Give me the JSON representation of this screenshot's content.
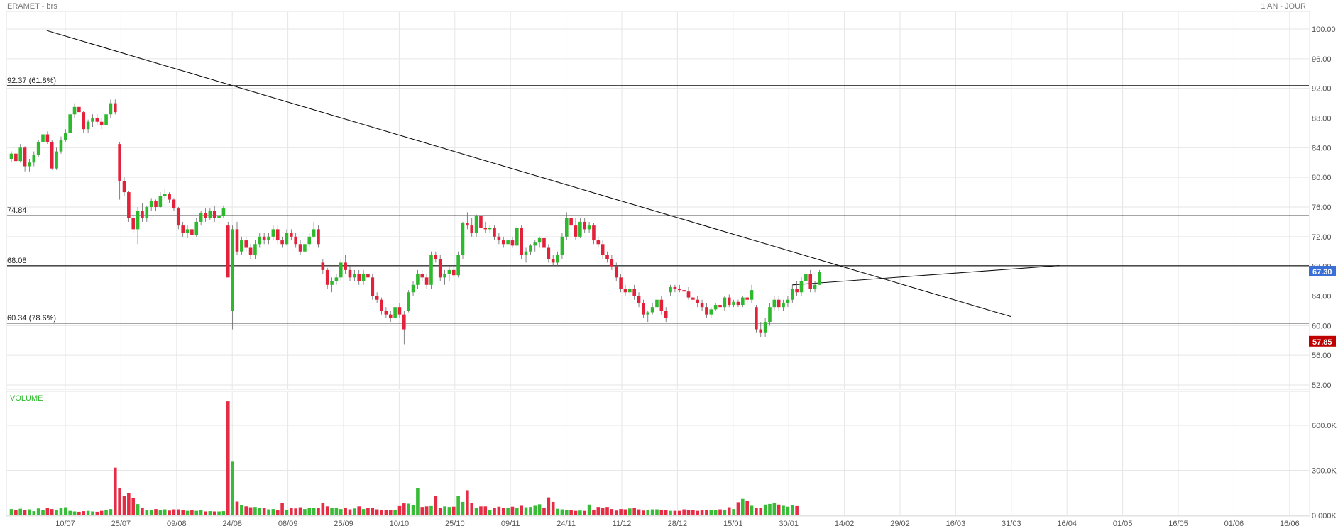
{
  "header": {
    "title": "ERAMET - brs",
    "period": "1 AN - JOUR"
  },
  "colors": {
    "up": "#2db82d",
    "down": "#e3213b",
    "grid": "#e6e6e6",
    "line": "#111111",
    "last_badge": "#3a6fd8",
    "low_badge": "#c00000",
    "volume_label": "#2db82d"
  },
  "chart_data": [
    {
      "type": "candlestick",
      "title": "ERAMET - brs",
      "ylim": [
        50,
        102
      ],
      "y_ticks": [
        "100.00",
        "96.00",
        "92.00",
        "88.00",
        "84.00",
        "80.00",
        "76.00",
        "72.00",
        "68.00",
        "64.00",
        "60.00",
        "56.00",
        "52.00"
      ],
      "x_ticks": [
        "10/07",
        "25/07",
        "09/08",
        "24/08",
        "08/09",
        "25/09",
        "10/10",
        "25/10",
        "09/11",
        "24/11",
        "11/12",
        "28/12",
        "15/01",
        "30/01",
        "14/02",
        "29/02",
        "16/03",
        "31/03",
        "16/04",
        "01/05",
        "16/05",
        "01/06",
        "16/06"
      ],
      "candles_ohlc": [
        [
          82.5,
          83.5,
          82.0,
          83.2
        ],
        [
          83.2,
          83.8,
          82.0,
          82.2
        ],
        [
          82.2,
          84.5,
          82.0,
          84.0
        ],
        [
          84.0,
          84.2,
          80.8,
          81.5
        ],
        [
          81.5,
          82.5,
          80.8,
          82.0
        ],
        [
          82.0,
          83.5,
          81.5,
          83.0
        ],
        [
          83.0,
          85.0,
          82.8,
          84.8
        ],
        [
          84.8,
          86.0,
          84.5,
          85.8
        ],
        [
          85.8,
          86.2,
          84.5,
          84.8
        ],
        [
          84.8,
          85.0,
          81.0,
          81.2
        ],
        [
          81.2,
          84.0,
          81.0,
          83.5
        ],
        [
          83.5,
          85.5,
          83.2,
          85.0
        ],
        [
          85.0,
          86.5,
          84.8,
          86.0
        ],
        [
          86.0,
          89.0,
          86.0,
          88.5
        ],
        [
          88.5,
          90.0,
          88.0,
          89.5
        ],
        [
          89.5,
          90.0,
          88.5,
          88.8
        ],
        [
          88.8,
          89.0,
          86.0,
          86.5
        ],
        [
          86.5,
          87.8,
          86.0,
          87.5
        ],
        [
          87.5,
          88.5,
          86.8,
          88.0
        ],
        [
          88.0,
          88.5,
          87.0,
          87.5
        ],
        [
          87.5,
          88.0,
          86.5,
          87.0
        ],
        [
          87.0,
          89.0,
          86.5,
          88.5
        ],
        [
          88.5,
          90.5,
          88.0,
          90.0
        ],
        [
          90.0,
          90.5,
          88.5,
          88.8
        ],
        [
          84.5,
          84.8,
          77.0,
          79.5
        ],
        [
          79.5,
          80.0,
          77.5,
          78.0
        ],
        [
          78.0,
          78.2,
          74.0,
          74.5
        ],
        [
          74.5,
          75.0,
          72.5,
          73.0
        ],
        [
          73.0,
          76.0,
          71.0,
          75.5
        ],
        [
          75.5,
          76.5,
          74.0,
          74.5
        ],
        [
          74.5,
          76.2,
          74.0,
          76.0
        ],
        [
          76.0,
          77.2,
          75.5,
          76.8
        ],
        [
          76.8,
          77.0,
          75.5,
          76.0
        ],
        [
          76.0,
          78.0,
          75.8,
          77.5
        ],
        [
          77.5,
          78.5,
          77.0,
          77.8
        ],
        [
          77.8,
          78.0,
          76.5,
          77.0
        ],
        [
          77.0,
          77.2,
          75.5,
          75.8
        ],
        [
          75.8,
          76.0,
          73.0,
          73.5
        ],
        [
          73.5,
          74.0,
          72.0,
          72.5
        ],
        [
          72.5,
          73.5,
          71.8,
          73.0
        ],
        [
          73.0,
          74.5,
          72.0,
          72.2
        ],
        [
          72.2,
          74.5,
          72.0,
          74.0
        ],
        [
          74.0,
          75.5,
          73.5,
          75.2
        ],
        [
          75.2,
          75.8,
          74.0,
          74.5
        ],
        [
          74.5,
          75.8,
          74.2,
          75.5
        ],
        [
          75.5,
          76.2,
          74.0,
          74.5
        ],
        [
          74.5,
          75.0,
          74.0,
          74.8
        ],
        [
          74.8,
          76.2,
          74.5,
          75.8
        ],
        [
          73.5,
          74.0,
          69.0,
          66.5
        ],
        [
          62.0,
          73.5,
          59.5,
          73.0
        ],
        [
          73.0,
          74.0,
          69.5,
          70.0
        ],
        [
          70.0,
          72.0,
          69.5,
          71.5
        ],
        [
          71.5,
          72.0,
          70.0,
          70.5
        ],
        [
          70.5,
          71.0,
          69.0,
          69.5
        ],
        [
          69.5,
          71.5,
          69.0,
          71.0
        ],
        [
          71.0,
          72.5,
          70.5,
          72.0
        ],
        [
          72.0,
          72.5,
          71.0,
          71.5
        ],
        [
          71.5,
          72.5,
          71.0,
          72.0
        ],
        [
          72.0,
          73.5,
          71.5,
          73.0
        ],
        [
          73.0,
          73.5,
          71.0,
          71.5
        ],
        [
          71.5,
          72.0,
          70.5,
          71.0
        ],
        [
          71.0,
          73.0,
          70.8,
          72.5
        ],
        [
          72.5,
          73.0,
          71.5,
          72.0
        ],
        [
          72.0,
          72.5,
          70.5,
          71.0
        ],
        [
          71.0,
          71.5,
          69.5,
          70.0
        ],
        [
          70.0,
          71.5,
          69.5,
          71.0
        ],
        [
          71.0,
          72.5,
          70.5,
          72.0
        ],
        [
          72.0,
          74.0,
          71.8,
          73.0
        ],
        [
          73.0,
          73.5,
          70.5,
          71.0
        ],
        [
          68.5,
          69.0,
          67.0,
          67.5
        ],
        [
          67.5,
          67.8,
          65.0,
          65.5
        ],
        [
          65.5,
          66.5,
          64.5,
          66.0
        ],
        [
          66.0,
          67.0,
          65.5,
          66.5
        ],
        [
          66.5,
          69.0,
          66.0,
          68.5
        ],
        [
          68.5,
          69.5,
          67.0,
          67.5
        ],
        [
          67.5,
          68.0,
          66.0,
          66.5
        ],
        [
          66.5,
          67.5,
          66.0,
          67.0
        ],
        [
          67.0,
          67.5,
          65.5,
          66.0
        ],
        [
          66.0,
          67.5,
          65.5,
          67.0
        ],
        [
          67.0,
          67.5,
          66.0,
          66.5
        ],
        [
          66.5,
          67.0,
          63.5,
          64.0
        ],
        [
          64.0,
          64.5,
          63.0,
          63.5
        ],
        [
          63.5,
          63.8,
          61.5,
          62.0
        ],
        [
          62.0,
          62.5,
          61.0,
          61.5
        ],
        [
          61.5,
          62.0,
          60.5,
          61.0
        ],
        [
          61.0,
          63.0,
          59.5,
          62.5
        ],
        [
          62.5,
          63.0,
          61.0,
          61.5
        ],
        [
          61.5,
          62.0,
          57.5,
          59.5
        ],
        [
          62.0,
          64.8,
          61.8,
          64.5
        ],
        [
          64.5,
          66.0,
          64.0,
          65.5
        ],
        [
          65.5,
          67.5,
          65.0,
          67.0
        ],
        [
          67.0,
          67.5,
          66.0,
          66.5
        ],
        [
          66.5,
          67.0,
          65.0,
          65.5
        ],
        [
          65.5,
          70.0,
          65.0,
          69.5
        ],
        [
          69.5,
          70.0,
          68.5,
          69.0
        ],
        [
          69.0,
          69.5,
          66.0,
          66.5
        ],
        [
          66.5,
          67.5,
          65.5,
          67.0
        ],
        [
          67.0,
          68.0,
          66.0,
          67.5
        ],
        [
          67.5,
          68.0,
          66.5,
          66.8
        ],
        [
          66.8,
          70.0,
          66.5,
          69.5
        ],
        [
          69.5,
          74.0,
          69.0,
          73.8
        ],
        [
          73.8,
          75.3,
          73.0,
          73.5
        ],
        [
          73.5,
          74.5,
          72.0,
          72.5
        ],
        [
          72.5,
          75.0,
          72.0,
          74.8
        ],
        [
          74.8,
          75.0,
          73.0,
          73.2
        ],
        [
          73.2,
          74.0,
          72.5,
          73.0
        ],
        [
          73.0,
          73.5,
          72.5,
          73.2
        ],
        [
          73.2,
          73.5,
          71.5,
          72.0
        ],
        [
          72.0,
          72.5,
          71.0,
          71.5
        ],
        [
          71.5,
          72.0,
          70.5,
          71.0
        ],
        [
          71.0,
          72.0,
          70.5,
          71.5
        ],
        [
          71.5,
          72.0,
          70.5,
          70.8
        ],
        [
          70.8,
          73.5,
          70.5,
          73.2
        ],
        [
          73.2,
          73.5,
          69.0,
          69.5
        ],
        [
          69.5,
          70.5,
          68.5,
          70.0
        ],
        [
          70.0,
          71.0,
          69.5,
          70.8
        ],
        [
          70.8,
          71.5,
          70.0,
          71.2
        ],
        [
          71.2,
          72.0,
          70.5,
          71.8
        ],
        [
          71.8,
          72.0,
          70.0,
          70.5
        ],
        [
          70.5,
          71.0,
          68.5,
          69.0
        ],
        [
          69.0,
          69.5,
          68.0,
          68.5
        ],
        [
          68.5,
          70.0,
          68.0,
          69.5
        ],
        [
          69.5,
          72.5,
          69.0,
          72.0
        ],
        [
          72.0,
          75.3,
          71.5,
          74.5
        ],
        [
          74.5,
          75.0,
          73.0,
          73.5
        ],
        [
          73.5,
          74.5,
          71.5,
          72.0
        ],
        [
          72.0,
          74.5,
          71.8,
          74.0
        ],
        [
          74.0,
          74.5,
          72.5,
          73.0
        ],
        [
          73.0,
          74.0,
          72.5,
          73.5
        ],
        [
          73.5,
          73.8,
          71.0,
          71.5
        ],
        [
          71.5,
          72.0,
          70.5,
          71.0
        ],
        [
          71.0,
          71.5,
          69.0,
          69.5
        ],
        [
          69.5,
          70.0,
          68.5,
          69.0
        ],
        [
          69.0,
          69.5,
          67.5,
          68.0
        ],
        [
          68.0,
          68.5,
          66.0,
          66.5
        ],
        [
          66.5,
          67.0,
          64.5,
          65.0
        ],
        [
          65.0,
          65.5,
          64.0,
          64.5
        ],
        [
          64.5,
          65.5,
          64.0,
          65.0
        ],
        [
          65.0,
          65.5,
          63.5,
          64.0
        ],
        [
          64.0,
          64.5,
          62.5,
          63.0
        ],
        [
          63.0,
          63.5,
          61.0,
          61.5
        ],
        [
          61.5,
          62.0,
          60.5,
          61.8
        ],
        [
          61.8,
          63.0,
          61.5,
          62.5
        ],
        [
          62.5,
          64.0,
          62.0,
          63.5
        ],
        [
          63.5,
          64.0,
          61.5,
          62.0
        ],
        [
          62.0,
          62.5,
          60.5,
          61.0
        ],
        [
          64.5,
          65.5,
          64.0,
          65.2
        ],
        [
          65.2,
          65.5,
          64.5,
          65.0
        ],
        [
          65.0,
          65.5,
          64.5,
          64.8
        ],
        [
          64.8,
          65.3,
          64.5,
          64.6
        ],
        [
          64.6,
          65.2,
          63.5,
          63.8
        ],
        [
          63.8,
          64.0,
          63.0,
          63.5
        ],
        [
          63.5,
          64.0,
          62.5,
          63.0
        ],
        [
          63.0,
          63.5,
          62.0,
          62.5
        ],
        [
          62.5,
          63.0,
          61.0,
          61.5
        ],
        [
          61.5,
          62.5,
          61.0,
          62.2
        ],
        [
          62.2,
          63.0,
          62.0,
          62.8
        ],
        [
          62.8,
          63.5,
          62.0,
          62.5
        ],
        [
          62.5,
          64.0,
          62.0,
          63.8
        ],
        [
          63.8,
          64.2,
          62.5,
          62.8
        ],
        [
          62.8,
          63.5,
          62.5,
          63.2
        ],
        [
          63.2,
          63.5,
          62.5,
          62.8
        ],
        [
          62.8,
          64.0,
          62.5,
          63.8
        ],
        [
          63.8,
          64.0,
          63.0,
          63.5
        ],
        [
          63.5,
          65.5,
          63.0,
          64.8
        ],
        [
          62.5,
          62.8,
          59.0,
          59.5
        ],
        [
          59.5,
          60.5,
          58.5,
          59.0
        ],
        [
          59.0,
          61.0,
          58.5,
          60.5
        ],
        [
          60.5,
          63.0,
          60.0,
          62.5
        ],
        [
          62.5,
          64.0,
          62.0,
          63.5
        ],
        [
          63.5,
          64.0,
          62.0,
          62.5
        ],
        [
          62.5,
          63.5,
          62.0,
          63.0
        ],
        [
          63.0,
          64.0,
          62.5,
          63.5
        ],
        [
          63.5,
          65.5,
          63.0,
          65.0
        ],
        [
          65.0,
          66.0,
          64.0,
          64.5
        ],
        [
          64.5,
          66.5,
          64.0,
          66.0
        ],
        [
          66.0,
          67.5,
          65.5,
          67.0
        ],
        [
          67.0,
          67.5,
          64.5,
          65.0
        ],
        [
          65.0,
          66.0,
          64.5,
          65.5
        ],
        [
          65.5,
          67.5,
          65.5,
          67.3
        ]
      ],
      "levels": [
        {
          "label": "92.37  (61.8%)",
          "value": 92.37
        },
        {
          "label": "74.84",
          "value": 74.84
        },
        {
          "label": "68.08",
          "value": 68.08
        },
        {
          "label": "60.34  (78.6%)",
          "value": 60.34
        }
      ],
      "trendlines": [
        {
          "from": [
            "05/07",
            99.8
          ],
          "to": [
            "31/03",
            61.2
          ]
        },
        {
          "from": [
            "22/01",
            65.5
          ],
          "to": [
            "03/04",
            68.1
          ]
        }
      ],
      "last_price": "67.30",
      "low_marker": "57.85"
    },
    {
      "type": "bar",
      "title": "VOLUME",
      "y_ticks": [
        "600.0K",
        "300.0K",
        "0.000K"
      ],
      "volumes_k": [
        42,
        38,
        44,
        36,
        40,
        28,
        46,
        34,
        50,
        42,
        38,
        48,
        54,
        30,
        26,
        24,
        28,
        30,
        26,
        24,
        30,
        36,
        42,
        318,
        180,
        130,
        150,
        115,
        75,
        50,
        38,
        36,
        42,
        34,
        40,
        32,
        40,
        40,
        34,
        30,
        36,
        30,
        36,
        26,
        28,
        26,
        26,
        28,
        760,
        362,
        92,
        68,
        60,
        54,
        56,
        48,
        52,
        40,
        42,
        36,
        82,
        38,
        48,
        46,
        54,
        42,
        50,
        48,
        52,
        84,
        60,
        52,
        52,
        42,
        48,
        40,
        46,
        60,
        42,
        48,
        48,
        40,
        36,
        34,
        34,
        36,
        62,
        80,
        78,
        70,
        180,
        56,
        60,
        62,
        130,
        50,
        60,
        56,
        58,
        130,
        90,
        168,
        84,
        52,
        60,
        60,
        38,
        50,
        58,
        48,
        48,
        58,
        50,
        64,
        54,
        56,
        64,
        74,
        50,
        120,
        90,
        44,
        40,
        34,
        36,
        30,
        32,
        30,
        72,
        38,
        56,
        52,
        56,
        42,
        32,
        42,
        40,
        46,
        48,
        40,
        32,
        36,
        40,
        40,
        38,
        34,
        30,
        30,
        30,
        40,
        34,
        34,
        30,
        36,
        38,
        34,
        34,
        40,
        36,
        54,
        42,
        88,
        110,
        96,
        64,
        48,
        52,
        72,
        76,
        84,
        72,
        64,
        58,
        68,
        62
      ]
    }
  ]
}
